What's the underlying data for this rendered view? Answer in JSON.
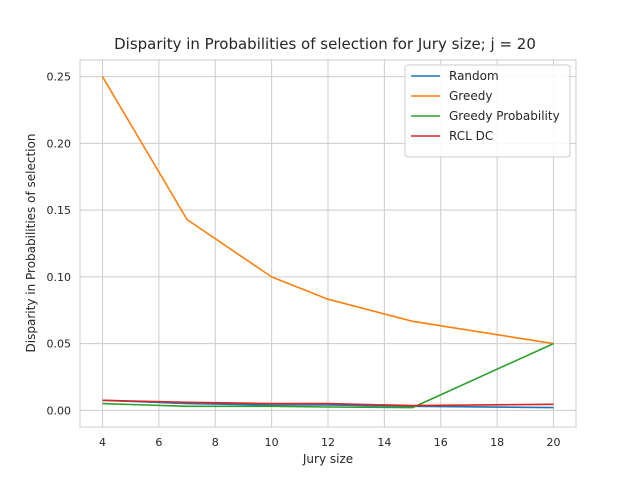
{
  "chart_data": {
    "type": "line",
    "title": "Disparity in Probabilities of selection for Jury size; j = 20",
    "xlabel": "Jury size",
    "ylabel": "Disparity in Probabilities of selection",
    "x": [
      4,
      7,
      10,
      12,
      15,
      20
    ],
    "xlim": [
      3.2,
      20.8
    ],
    "ylim": [
      -0.0125,
      0.2625
    ],
    "xticks": [
      4,
      6,
      8,
      10,
      12,
      14,
      16,
      18,
      20
    ],
    "yticks": [
      0.0,
      0.05,
      0.1,
      0.15,
      0.2,
      0.25
    ],
    "ytick_format": 2,
    "grid": true,
    "legend_position": "top-right",
    "series": [
      {
        "name": "Random",
        "color": "#1f77b4",
        "values": [
          0.0075,
          0.005,
          0.004,
          0.004,
          0.003,
          0.002
        ]
      },
      {
        "name": "Greedy",
        "color": "#ff7f0e",
        "values": [
          0.25,
          0.1429,
          0.1,
          0.0833,
          0.0667,
          0.05
        ]
      },
      {
        "name": "Greedy Probability",
        "color": "#2ca02c",
        "values": [
          0.005,
          0.003,
          0.003,
          0.0025,
          0.002,
          0.05
        ]
      },
      {
        "name": "RCL DC",
        "color": "#d62728",
        "values": [
          0.0075,
          0.006,
          0.005,
          0.005,
          0.0035,
          0.0045
        ]
      }
    ]
  }
}
